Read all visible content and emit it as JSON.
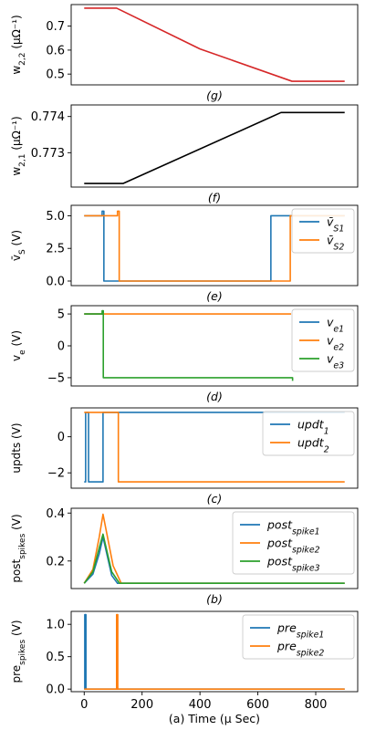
{
  "chart_data": [
    {
      "type": "line",
      "caption": "(g)",
      "ylabel": "w_{2,2} (μΩ⁻¹)",
      "xlim": [
        -45,
        945
      ],
      "ylim": [
        0.455,
        0.79
      ],
      "yticks": [
        "0.7",
        "0.6",
        "0.5"
      ],
      "ytick_values": [
        0.7,
        0.6,
        0.5
      ],
      "show_xticks": false,
      "legend": [],
      "series": [
        {
          "color": "#d62728",
          "points": [
            [
              0,
              0.775
            ],
            [
              112,
              0.775
            ],
            [
              400,
              0.605
            ],
            [
              718,
              0.47
            ],
            [
              900,
              0.47
            ]
          ]
        }
      ]
    },
    {
      "type": "line",
      "caption": "(f)",
      "ylabel": "w_{2,1} (μΩ⁻¹)",
      "xlim": [
        -45,
        945
      ],
      "ylim": [
        0.77205,
        0.77432
      ],
      "yticks": [
        "0.774",
        "0.773"
      ],
      "ytick_values": [
        0.774,
        0.773
      ],
      "show_xticks": false,
      "legend": [],
      "series": [
        {
          "color": "#000000",
          "points": [
            [
              0,
              0.77215
            ],
            [
              135,
              0.77215
            ],
            [
              680,
              0.77411
            ],
            [
              900,
              0.77411
            ]
          ]
        }
      ]
    },
    {
      "type": "line",
      "caption": "(e)",
      "ylabel": "v̄_S (V)",
      "xlim": [
        -45,
        945
      ],
      "ylim": [
        -0.35,
        5.8
      ],
      "yticks": [
        "5.0",
        "2.5",
        "0.0"
      ],
      "ytick_values": [
        5.0,
        2.5,
        0.0
      ],
      "show_xticks": false,
      "legend": [
        "v̄_{S1}",
        "v̄_{S2}"
      ],
      "series": [
        {
          "color": "#1f77b4",
          "points": [
            [
              0,
              5
            ],
            [
              62,
              5
            ],
            [
              62,
              5.35
            ],
            [
              68,
              5.35
            ],
            [
              68,
              0
            ],
            [
              645,
              0
            ],
            [
              645,
              5
            ],
            [
              900,
              5
            ]
          ]
        },
        {
          "color": "#ff7f0e",
          "points": [
            [
              0,
              5
            ],
            [
              115,
              5
            ],
            [
              115,
              5.35
            ],
            [
              121,
              5.35
            ],
            [
              121,
              0
            ],
            [
              712,
              0
            ],
            [
              712,
              5
            ],
            [
              900,
              5
            ]
          ]
        }
      ]
    },
    {
      "type": "line",
      "caption": "(d)",
      "ylabel": "v_e (V)",
      "xlim": [
        -45,
        945
      ],
      "ylim": [
        -6.3,
        6.3
      ],
      "yticks": [
        "5",
        "0",
        "−5"
      ],
      "ytick_values": [
        5,
        0,
        -5
      ],
      "show_xticks": false,
      "legend": [
        "v_{e1}",
        "v_{e2}",
        "v_{e3}"
      ],
      "series": [
        {
          "color": "#1f77b4",
          "points": [
            [
              0,
              5
            ],
            [
              65,
              5
            ]
          ]
        },
        {
          "color": "#ff7f0e",
          "points": [
            [
              0,
              5
            ],
            [
              715,
              5
            ]
          ]
        },
        {
          "color": "#2ca02c",
          "points": [
            [
              0,
              5
            ],
            [
              62,
              5
            ],
            [
              62,
              5.5
            ],
            [
              66,
              5.5
            ],
            [
              66,
              -5
            ],
            [
              720,
              -5
            ],
            [
              720,
              -5.5
            ]
          ]
        }
      ]
    },
    {
      "type": "line",
      "caption": "(c)",
      "ylabel": "updts (V)",
      "xlim": [
        -45,
        945
      ],
      "ylim": [
        -2.85,
        1.6
      ],
      "yticks": [
        "0",
        "−2"
      ],
      "ytick_values": [
        0,
        -2
      ],
      "show_xticks": false,
      "legend": [
        "updt_1",
        "updt_2"
      ],
      "series": [
        {
          "color": "#1f77b4",
          "points": [
            [
              0,
              -2.5
            ],
            [
              5,
              -2.5
            ],
            [
              5,
              1.35
            ],
            [
              15,
              1.35
            ],
            [
              15,
              -2.5
            ],
            [
              65,
              -2.5
            ],
            [
              65,
              1.35
            ],
            [
              900,
              1.35
            ]
          ]
        },
        {
          "color": "#ff7f0e",
          "points": [
            [
              0,
              1.35
            ],
            [
              118,
              1.35
            ],
            [
              118,
              -2.5
            ],
            [
              900,
              -2.5
            ]
          ]
        }
      ]
    },
    {
      "type": "line",
      "caption": "(b)",
      "ylabel": "post_spikes (V)",
      "xlim": [
        -45,
        945
      ],
      "ylim": [
        0.085,
        0.42
      ],
      "yticks": [
        "0.4",
        "0.2"
      ],
      "ytick_values": [
        0.4,
        0.2
      ],
      "show_xticks": false,
      "legend": [
        "post_spike_1",
        "post_spike_2",
        "post_spike_3"
      ],
      "series": [
        {
          "color": "#1f77b4",
          "points": [
            [
              0,
              0.107
            ],
            [
              30,
              0.145
            ],
            [
              52,
              0.23
            ],
            [
              65,
              0.3
            ],
            [
              95,
              0.14
            ],
            [
              115,
              0.107
            ],
            [
              900,
              0.107
            ]
          ]
        },
        {
          "color": "#ff7f0e",
          "points": [
            [
              0,
              0.107
            ],
            [
              30,
              0.165
            ],
            [
              52,
              0.3
            ],
            [
              65,
              0.395
            ],
            [
              100,
              0.18
            ],
            [
              128,
              0.107
            ],
            [
              900,
              0.107
            ]
          ]
        },
        {
          "color": "#2ca02c",
          "points": [
            [
              0,
              0.107
            ],
            [
              30,
              0.155
            ],
            [
              52,
              0.255
            ],
            [
              65,
              0.312
            ],
            [
              95,
              0.155
            ],
            [
              122,
              0.107
            ],
            [
              900,
              0.107
            ]
          ]
        }
      ]
    },
    {
      "type": "line",
      "caption": "(a) Time (μ Sec)",
      "ylabel": "pre_spikes (V)",
      "xlim": [
        -45,
        945
      ],
      "ylim": [
        -0.04,
        1.2
      ],
      "yticks": [
        "1.0",
        "0.5",
        "0.0"
      ],
      "ytick_values": [
        1.0,
        0.5,
        0.0
      ],
      "show_xticks": true,
      "xticks": [
        "0",
        "200",
        "400",
        "600",
        "800"
      ],
      "xtick_values": [
        0,
        200,
        400,
        600,
        800
      ],
      "legend": [
        "pre_spike_1",
        "pre_spike_2"
      ],
      "series": [
        {
          "color": "#1f77b4",
          "points": [
            [
              0,
              0
            ],
            [
              2,
              0
            ],
            [
              2,
              1.15
            ],
            [
              6,
              1.15
            ],
            [
              6,
              0
            ],
            [
              900,
              0
            ]
          ]
        },
        {
          "color": "#ff7f0e",
          "points": [
            [
              0,
              0
            ],
            [
              112,
              0
            ],
            [
              112,
              1.15
            ],
            [
              116,
              1.15
            ],
            [
              116,
              0
            ],
            [
              900,
              0
            ]
          ]
        }
      ]
    }
  ]
}
